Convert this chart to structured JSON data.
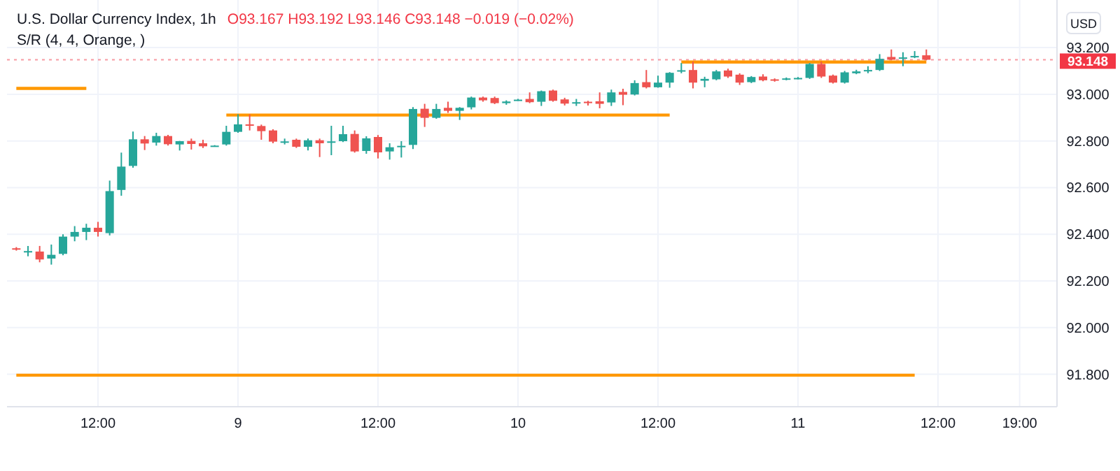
{
  "chart_data": {
    "type": "candlestick",
    "title": "U.S. Dollar Currency Index, 1h",
    "subtitle": "S/R (4, 4, Orange, )",
    "ylabel": "USD",
    "annotations": [
      "O93.167 H93.192 L93.146 C93.148 −0.019 (−0.02%)"
    ],
    "categories": [
      null,
      null,
      null,
      null,
      null,
      null,
      null,
      "12:00",
      null,
      null,
      null,
      null,
      null,
      null,
      null,
      null,
      null,
      null,
      null,
      "9",
      null,
      null,
      null,
      null,
      null,
      null,
      null,
      null,
      null,
      null,
      null,
      "12:00",
      null,
      null,
      null,
      null,
      null,
      null,
      null,
      null,
      null,
      null,
      null,
      "10",
      null,
      null,
      null,
      null,
      null,
      null,
      null,
      null,
      null,
      null,
      null,
      "12:00",
      null,
      null,
      null,
      null,
      null,
      null,
      null,
      null,
      null,
      null,
      null,
      "11",
      null,
      null,
      null,
      null,
      null,
      null,
      null,
      null,
      null,
      null,
      null,
      "12:00",
      null,
      null,
      null,
      null,
      null,
      null,
      "19:00"
    ],
    "ohlc": [
      [
        92.34,
        92.345,
        92.33,
        92.335
      ],
      [
        92.325,
        92.35,
        92.306,
        92.328
      ],
      [
        92.326,
        92.35,
        92.28,
        92.292
      ],
      [
        92.296,
        92.356,
        92.27,
        92.312
      ],
      [
        92.316,
        92.4,
        92.31,
        92.39
      ],
      [
        92.39,
        92.435,
        92.37,
        92.41
      ],
      [
        92.41,
        92.445,
        92.375,
        92.428
      ],
      [
        92.428,
        92.453,
        92.39,
        92.41
      ],
      [
        92.405,
        92.63,
        92.395,
        92.585
      ],
      [
        92.59,
        92.75,
        92.565,
        92.69
      ],
      [
        92.693,
        92.84,
        92.685,
        92.807
      ],
      [
        92.807,
        92.821,
        92.761,
        92.789
      ],
      [
        92.793,
        92.835,
        92.78,
        92.821
      ],
      [
        92.821,
        92.826,
        92.78,
        92.786
      ],
      [
        92.785,
        92.8,
        92.759,
        92.799
      ],
      [
        92.8,
        92.81,
        92.763,
        92.787
      ],
      [
        92.79,
        92.805,
        92.77,
        92.777
      ],
      [
        92.777,
        92.782,
        92.775,
        92.78
      ],
      [
        92.785,
        92.865,
        92.78,
        92.839
      ],
      [
        92.839,
        92.914,
        92.835,
        92.871
      ],
      [
        92.871,
        92.914,
        92.845,
        92.867
      ],
      [
        92.864,
        92.87,
        92.805,
        92.842
      ],
      [
        92.845,
        92.85,
        92.79,
        92.797
      ],
      [
        92.796,
        92.81,
        92.785,
        92.798
      ],
      [
        92.805,
        92.81,
        92.77,
        92.775
      ],
      [
        92.775,
        92.81,
        92.759,
        92.803
      ],
      [
        92.803,
        92.81,
        92.731,
        92.79
      ],
      [
        92.796,
        92.865,
        92.739,
        92.798
      ],
      [
        92.799,
        92.865,
        92.795,
        92.829
      ],
      [
        92.83,
        92.845,
        92.75,
        92.755
      ],
      [
        92.757,
        92.82,
        92.745,
        92.811
      ],
      [
        92.817,
        92.825,
        92.725,
        92.751
      ],
      [
        92.755,
        92.79,
        92.72,
        92.773
      ],
      [
        92.776,
        92.799,
        92.729,
        92.779
      ],
      [
        92.783,
        92.945,
        92.765,
        92.937
      ],
      [
        92.938,
        92.959,
        92.86,
        92.899
      ],
      [
        92.899,
        92.959,
        92.895,
        92.937
      ],
      [
        92.942,
        92.968,
        92.92,
        92.929
      ],
      [
        92.929,
        92.945,
        92.89,
        92.942
      ],
      [
        92.944,
        92.99,
        92.935,
        92.986
      ],
      [
        92.986,
        92.99,
        92.968,
        92.974
      ],
      [
        92.984,
        92.99,
        92.958,
        92.962
      ],
      [
        92.962,
        92.974,
        92.955,
        92.969
      ],
      [
        92.975,
        92.98,
        92.972,
        92.977
      ],
      [
        92.98,
        93.008,
        92.962,
        92.966
      ],
      [
        92.968,
        93.016,
        92.95,
        93.013
      ],
      [
        93.016,
        93.02,
        92.968,
        92.972
      ],
      [
        92.978,
        92.985,
        92.952,
        92.96
      ],
      [
        92.965,
        92.98,
        92.95,
        92.966
      ],
      [
        92.968,
        92.972,
        92.952,
        92.962
      ],
      [
        92.97,
        93.008,
        92.94,
        92.959
      ],
      [
        92.965,
        93.02,
        92.95,
        93.008
      ],
      [
        93.01,
        93.024,
        92.953,
        92.998
      ],
      [
        92.999,
        93.06,
        92.995,
        93.048
      ],
      [
        93.052,
        93.104,
        93.025,
        93.03
      ],
      [
        93.03,
        93.08,
        93.028,
        93.05
      ],
      [
        93.05,
        93.095,
        93.028,
        93.092
      ],
      [
        93.097,
        93.134,
        93.09,
        93.103
      ],
      [
        93.104,
        93.14,
        93.025,
        93.05
      ],
      [
        93.058,
        93.075,
        93.03,
        93.066
      ],
      [
        93.064,
        93.104,
        93.06,
        93.098
      ],
      [
        93.102,
        93.11,
        93.07,
        93.076
      ],
      [
        93.084,
        93.09,
        93.04,
        93.05
      ],
      [
        93.052,
        93.078,
        93.048,
        93.074
      ],
      [
        93.076,
        93.086,
        93.056,
        93.06
      ],
      [
        93.064,
        93.068,
        93.054,
        93.058
      ],
      [
        93.066,
        93.072,
        93.06,
        93.068
      ],
      [
        93.068,
        93.074,
        93.064,
        93.07
      ],
      [
        93.07,
        93.134,
        93.066,
        93.13
      ],
      [
        93.13,
        93.14,
        93.07,
        93.076
      ],
      [
        93.08,
        93.084,
        93.046,
        93.05
      ],
      [
        93.05,
        93.1,
        93.046,
        93.094
      ],
      [
        93.09,
        93.105,
        93.086,
        93.098
      ],
      [
        93.098,
        93.12,
        93.09,
        93.104
      ],
      [
        93.104,
        93.172,
        93.1,
        93.152
      ],
      [
        93.16,
        93.192,
        93.146,
        93.148
      ],
      [
        93.156,
        93.18,
        93.12,
        93.158
      ],
      [
        93.158,
        93.185,
        93.155,
        93.164
      ],
      [
        93.167,
        93.192,
        93.146,
        93.148
      ],
      null,
      null,
      null,
      null,
      null,
      null,
      null,
      null
    ],
    "colors": [
      "#ef5350",
      "#26a69a",
      "#ef5350",
      "#26a69a",
      "#26a69a",
      "#26a69a",
      "#26a69a",
      "#ef5350",
      "#26a69a",
      "#26a69a",
      "#26a69a",
      "#ef5350",
      "#26a69a",
      "#ef5350",
      "#26a69a",
      "#ef5350",
      "#ef5350",
      "#26a69a",
      "#26a69a",
      "#26a69a",
      "#ef5350",
      "#ef5350",
      "#ef5350",
      "#26a69a",
      "#ef5350",
      "#26a69a",
      "#ef5350",
      "#26a69a",
      "#26a69a",
      "#ef5350",
      "#26a69a",
      "#ef5350",
      "#26a69a",
      "#26a69a",
      "#26a69a",
      "#ef5350",
      "#26a69a",
      "#ef5350",
      "#26a69a",
      "#26a69a",
      "#ef5350",
      "#ef5350",
      "#26a69a",
      "#26a69a",
      "#ef5350",
      "#26a69a",
      "#ef5350",
      "#ef5350",
      "#26a69a",
      "#ef5350",
      "#ef5350",
      "#26a69a",
      "#ef5350",
      "#26a69a",
      "#ef5350",
      "#26a69a",
      "#26a69a",
      "#26a69a",
      "#ef5350",
      "#26a69a",
      "#26a69a",
      "#ef5350",
      "#ef5350",
      "#26a69a",
      "#ef5350",
      "#ef5350",
      "#26a69a",
      "#26a69a",
      "#26a69a",
      "#ef5350",
      "#ef5350",
      "#26a69a",
      "#26a69a",
      "#26a69a",
      "#26a69a",
      "#ef5350",
      "#26a69a",
      "#26a69a",
      "#ef5350",
      null,
      null,
      null,
      null,
      null,
      null,
      null,
      null
    ],
    "series": [
      {
        "type": "line",
        "color": "#ff9800",
        "values": [
          93.025,
          93.025,
          93.025,
          93.025,
          93.025,
          93.025,
          93.025,
          null,
          null,
          null,
          null,
          null,
          null,
          null,
          null,
          null,
          null,
          null,
          null,
          null,
          null,
          null,
          null,
          null,
          null,
          null,
          null,
          null,
          null,
          null,
          null,
          null,
          null,
          null,
          null,
          null,
          null,
          null,
          null,
          null,
          null,
          null,
          null,
          null,
          null,
          null,
          null,
          null,
          null,
          null,
          null,
          null,
          null,
          null,
          null,
          null,
          null,
          null,
          null,
          null,
          null,
          null,
          null,
          null,
          null,
          null,
          null,
          null,
          null,
          null,
          null,
          null,
          null,
          null,
          null,
          null,
          null,
          null,
          null,
          null,
          null,
          null,
          null,
          null,
          null,
          null,
          null
        ]
      },
      {
        "type": "line",
        "color": "#ff9800",
        "values": [
          null,
          null,
          null,
          null,
          null,
          null,
          null,
          null,
          null,
          null,
          null,
          null,
          null,
          null,
          null,
          null,
          null,
          null,
          92.911,
          92.911,
          92.911,
          92.911,
          92.911,
          92.911,
          92.911,
          92.911,
          92.911,
          92.911,
          92.911,
          92.911,
          92.911,
          92.911,
          92.911,
          92.911,
          92.911,
          92.911,
          92.911,
          92.911,
          92.911,
          92.911,
          92.911,
          92.911,
          92.911,
          92.911,
          92.911,
          92.911,
          92.911,
          92.911,
          92.911,
          92.911,
          92.911,
          92.911,
          92.911,
          92.911,
          92.911,
          92.911,
          92.911,
          null,
          null,
          null,
          null,
          null,
          null,
          null,
          null,
          null,
          null,
          null,
          null,
          null,
          null,
          null,
          null,
          null,
          null,
          null,
          null,
          null,
          null,
          null,
          null,
          null,
          null,
          null,
          null,
          null,
          null
        ]
      },
      {
        "type": "line",
        "color": "#ff9800",
        "values": [
          null,
          null,
          null,
          null,
          null,
          null,
          null,
          null,
          null,
          null,
          null,
          null,
          null,
          null,
          null,
          null,
          null,
          null,
          null,
          null,
          null,
          null,
          null,
          null,
          null,
          null,
          null,
          null,
          null,
          null,
          null,
          null,
          null,
          null,
          null,
          null,
          null,
          null,
          null,
          null,
          null,
          null,
          null,
          null,
          null,
          null,
          null,
          null,
          null,
          null,
          null,
          null,
          null,
          null,
          null,
          null,
          null,
          93.138,
          93.138,
          93.138,
          93.138,
          93.138,
          93.138,
          93.138,
          93.138,
          93.138,
          93.138,
          93.138,
          93.138,
          93.138,
          93.138,
          93.138,
          93.138,
          93.138,
          93.138,
          93.138,
          93.138,
          93.138,
          93.138,
          null,
          null,
          null,
          null,
          null,
          null,
          null,
          null
        ]
      },
      {
        "type": "line",
        "color": "#ff9800",
        "values": [
          91.796,
          91.796,
          91.796,
          91.796,
          91.796,
          91.796,
          91.796,
          91.796,
          91.796,
          91.796,
          91.796,
          91.796,
          91.796,
          91.796,
          91.796,
          91.796,
          91.796,
          91.796,
          91.796,
          91.796,
          91.796,
          91.796,
          91.796,
          91.796,
          91.796,
          91.796,
          91.796,
          91.796,
          91.796,
          91.796,
          91.796,
          91.796,
          91.796,
          91.796,
          91.796,
          91.796,
          91.796,
          91.796,
          91.796,
          91.796,
          91.796,
          91.796,
          91.796,
          91.796,
          91.796,
          91.796,
          91.796,
          91.796,
          91.796,
          91.796,
          91.796,
          91.796,
          91.796,
          91.796,
          91.796,
          91.796,
          91.796,
          91.796,
          91.796,
          91.796,
          91.796,
          91.796,
          91.796,
          91.796,
          91.796,
          91.796,
          91.796,
          91.796,
          91.796,
          91.796,
          91.796,
          91.796,
          91.796,
          91.796,
          91.796,
          91.796,
          91.796,
          91.796,
          null,
          null,
          null,
          null,
          null,
          null,
          null,
          null,
          null
        ]
      }
    ],
    "ref_lines": [
      {
        "axis": "y",
        "value": 93.148,
        "label": "93.148",
        "color": "#f23645",
        "line_style": "dotted"
      }
    ],
    "ylim": [
      91.661,
      93.404
    ],
    "yticks": [
      {
        "value": 91.8,
        "label": "91.800"
      },
      {
        "value": 92,
        "label": "92.000"
      },
      {
        "value": 92.2,
        "label": "92.200"
      },
      {
        "value": 92.4,
        "label": "92.400"
      },
      {
        "value": 92.6,
        "label": "92.600"
      },
      {
        "value": 92.8,
        "label": "92.800"
      },
      {
        "value": 93,
        "label": "93.000"
      },
      {
        "value": 93.2,
        "label": "93.200"
      }
    ],
    "grid": true
  }
}
